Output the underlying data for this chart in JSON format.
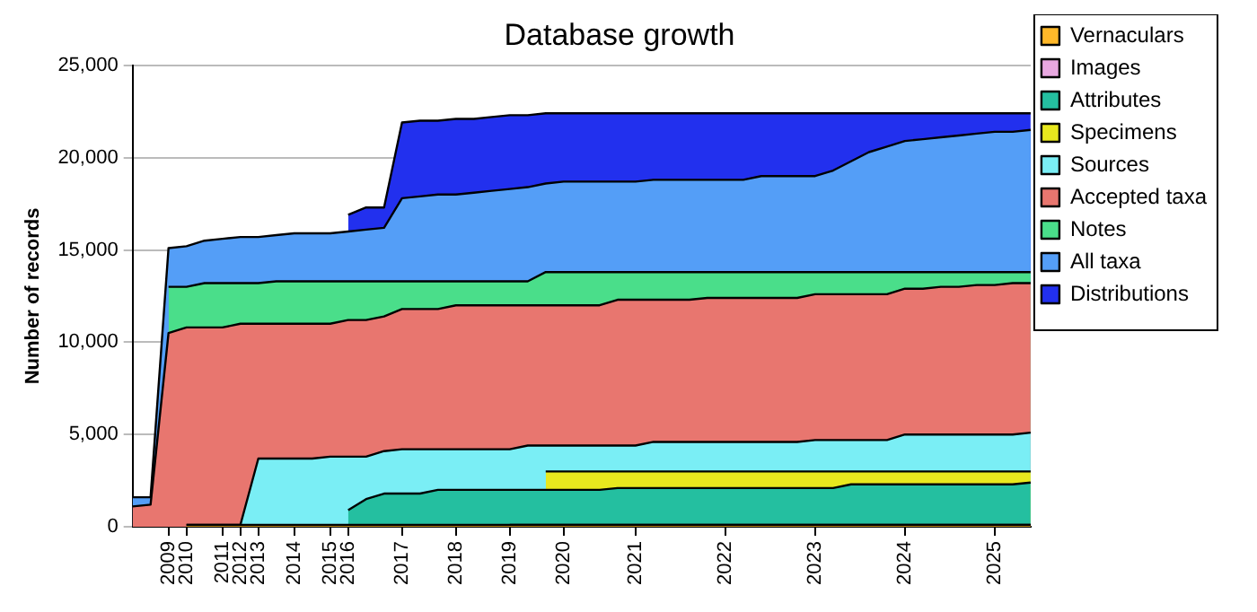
{
  "chart_data": {
    "type": "area",
    "title": "Database growth",
    "ylabel": "Number of records",
    "categories": [
      null,
      null,
      "2009",
      "2010",
      null,
      "2011",
      "2012",
      "2013",
      null,
      "2014",
      null,
      "2015",
      "2016",
      null,
      null,
      "2017",
      null,
      null,
      "2018",
      null,
      null,
      "2019",
      null,
      null,
      "2020",
      null,
      null,
      null,
      "2021",
      null,
      null,
      null,
      null,
      "2022",
      null,
      null,
      null,
      null,
      "2023",
      null,
      null,
      null,
      null,
      "2024",
      null,
      null,
      null,
      null,
      "2025",
      null,
      null
    ],
    "ylim": [
      0,
      25000
    ],
    "yticks": [
      {
        "value": 0,
        "label": "0"
      },
      {
        "value": 5000,
        "label": "5,000"
      },
      {
        "value": 10000,
        "label": "10,000"
      },
      {
        "value": 15000,
        "label": "15,000"
      },
      {
        "value": 20000,
        "label": "20,000"
      },
      {
        "value": 25000,
        "label": "25,000"
      }
    ],
    "grid": "y",
    "legend": "right",
    "series": [
      {
        "name": "Vernaculars",
        "color": "#ffb829",
        "values": [
          null,
          null,
          null,
          100,
          100,
          100,
          100,
          100,
          100,
          100,
          100,
          100,
          100,
          100,
          100,
          100,
          100,
          100,
          100,
          100,
          100,
          100,
          100,
          100,
          100,
          100,
          100,
          100,
          100,
          100,
          100,
          100,
          100,
          100,
          100,
          100,
          100,
          100,
          100,
          100,
          100,
          100,
          100,
          100,
          100,
          100,
          100,
          100,
          100,
          100,
          100
        ]
      },
      {
        "name": "Images",
        "color": "#e8a8e0",
        "values": [
          null,
          null,
          null,
          null,
          null,
          null,
          null,
          null,
          null,
          null,
          null,
          null,
          null,
          null,
          null,
          null,
          null,
          null,
          null,
          null,
          null,
          100,
          100,
          100,
          100,
          100,
          100,
          100,
          100,
          100,
          100,
          100,
          100,
          100,
          100,
          100,
          100,
          100,
          100,
          100,
          100,
          100,
          100,
          100,
          100,
          100,
          100,
          100,
          100,
          100,
          100
        ]
      },
      {
        "name": "Attributes",
        "color": "#24bfa0",
        "values": [
          null,
          null,
          null,
          null,
          null,
          null,
          null,
          null,
          null,
          null,
          null,
          null,
          900,
          1500,
          1800,
          1800,
          1800,
          2000,
          2000,
          2000,
          2000,
          2000,
          2000,
          2000,
          2000,
          2000,
          2000,
          2100,
          2100,
          2100,
          2100,
          2100,
          2100,
          2100,
          2100,
          2100,
          2100,
          2100,
          2100,
          2100,
          2300,
          2300,
          2300,
          2300,
          2300,
          2300,
          2300,
          2300,
          2300,
          2300,
          2400
        ]
      },
      {
        "name": "Specimens",
        "color": "#e8e81e",
        "values": [
          null,
          null,
          null,
          null,
          null,
          null,
          null,
          null,
          null,
          null,
          null,
          null,
          null,
          null,
          null,
          null,
          null,
          null,
          null,
          null,
          null,
          null,
          null,
          3000,
          3000,
          3000,
          3000,
          3000,
          3000,
          3000,
          3000,
          3000,
          3000,
          3000,
          3000,
          3000,
          3000,
          3000,
          3000,
          3000,
          3000,
          3000,
          3000,
          3000,
          3000,
          3000,
          3000,
          3000,
          3000,
          3000,
          3000
        ]
      },
      {
        "name": "Sources",
        "color": "#7aeef5",
        "values": [
          null,
          null,
          null,
          100,
          100,
          100,
          100,
          3700,
          3700,
          3700,
          3700,
          3800,
          3800,
          3800,
          4100,
          4200,
          4200,
          4200,
          4200,
          4200,
          4200,
          4200,
          4400,
          4400,
          4400,
          4400,
          4400,
          4400,
          4400,
          4600,
          4600,
          4600,
          4600,
          4600,
          4600,
          4600,
          4600,
          4600,
          4700,
          4700,
          4700,
          4700,
          4700,
          5000,
          5000,
          5000,
          5000,
          5000,
          5000,
          5000,
          5100
        ]
      },
      {
        "name": "Accepted taxa",
        "color": "#e8766f",
        "values": [
          1100,
          1200,
          10500,
          10800,
          10800,
          10800,
          11000,
          11000,
          11000,
          11000,
          11000,
          11000,
          11200,
          11200,
          11400,
          11800,
          11800,
          11800,
          12000,
          12000,
          12000,
          12000,
          12000,
          12000,
          12000,
          12000,
          12000,
          12300,
          12300,
          12300,
          12300,
          12300,
          12400,
          12400,
          12400,
          12400,
          12400,
          12400,
          12600,
          12600,
          12600,
          12600,
          12600,
          12900,
          12900,
          13000,
          13000,
          13100,
          13100,
          13200,
          13200
        ]
      },
      {
        "name": "Notes",
        "color": "#4ade8a",
        "values": [
          null,
          null,
          13000,
          13000,
          13200,
          13200,
          13200,
          13200,
          13300,
          13300,
          13300,
          13300,
          13300,
          13300,
          13300,
          13300,
          13300,
          13300,
          13300,
          13300,
          13300,
          13300,
          13300,
          13800,
          13800,
          13800,
          13800,
          13800,
          13800,
          13800,
          13800,
          13800,
          13800,
          13800,
          13800,
          13800,
          13800,
          13800,
          13800,
          13800,
          13800,
          13800,
          13800,
          13800,
          13800,
          13800,
          13800,
          13800,
          13800,
          13800,
          13800
        ]
      },
      {
        "name": "All taxa",
        "color": "#549ef7",
        "values": [
          1600,
          1600,
          15100,
          15200,
          15500,
          15600,
          15700,
          15700,
          15800,
          15900,
          15900,
          15900,
          16000,
          16100,
          16200,
          17800,
          17900,
          18000,
          18000,
          18100,
          18200,
          18300,
          18400,
          18600,
          18700,
          18700,
          18700,
          18700,
          18700,
          18800,
          18800,
          18800,
          18800,
          18800,
          18800,
          19000,
          19000,
          19000,
          19000,
          19300,
          19800,
          20300,
          20600,
          20900,
          21000,
          21100,
          21200,
          21300,
          21400,
          21400,
          21500
        ]
      },
      {
        "name": "Distributions",
        "color": "#2230ee",
        "values": [
          null,
          null,
          null,
          null,
          null,
          null,
          null,
          null,
          null,
          null,
          null,
          null,
          16900,
          17300,
          17300,
          21900,
          22000,
          22000,
          22100,
          22100,
          22200,
          22300,
          22300,
          22400,
          22400,
          22400,
          22400,
          22400,
          22400,
          22400,
          22400,
          22400,
          22400,
          22400,
          22400,
          22400,
          22400,
          22400,
          22400,
          22400,
          22400,
          22400,
          22400,
          22400,
          22400,
          22400,
          22400,
          22400,
          22400,
          22400,
          22400
        ]
      }
    ]
  }
}
